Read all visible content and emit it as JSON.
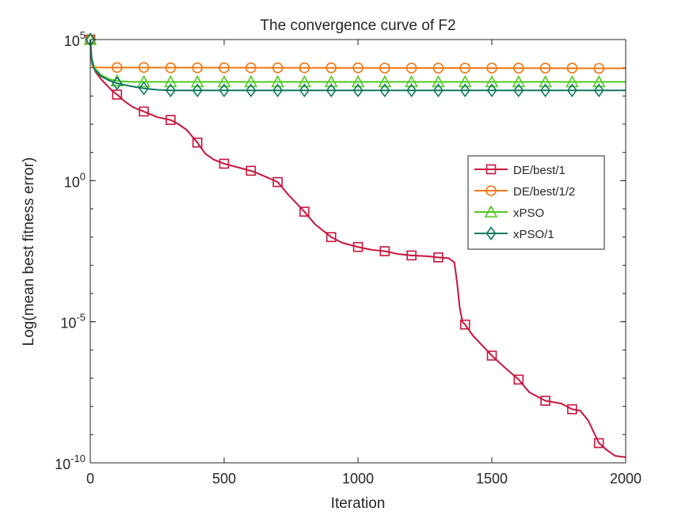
{
  "chart_data": {
    "type": "line",
    "title": "The convergence curve of F2",
    "xlabel": "Iteration",
    "ylabel": "Log(mean best fitness error)",
    "xlim": [
      0,
      2000
    ],
    "ylim_exponent": [
      -10,
      5
    ],
    "y_scale": "log",
    "grid": false,
    "legend_position": "right-middle",
    "x_ticks": [
      {
        "value": 0,
        "label": "0"
      },
      {
        "value": 500,
        "label": "500"
      },
      {
        "value": 1000,
        "label": "1000"
      },
      {
        "value": 1500,
        "label": "1500"
      },
      {
        "value": 2000,
        "label": "2000"
      }
    ],
    "y_ticks": [
      {
        "exponent": 5,
        "base": "10",
        "sup": "5"
      },
      {
        "exponent": 0,
        "base": "10",
        "sup": "0"
      },
      {
        "exponent": -5,
        "base": "10",
        "sup": "-5"
      },
      {
        "exponent": -10,
        "base": "10",
        "sup": "-10"
      }
    ],
    "series": [
      {
        "name": "DE/best/1",
        "color": "#C8143C",
        "marker": "square",
        "points": [
          [
            0,
            5.0
          ],
          [
            5,
            4.35
          ],
          [
            10,
            4.1
          ],
          [
            20,
            3.85
          ],
          [
            40,
            3.6
          ],
          [
            60,
            3.4
          ],
          [
            80,
            3.2
          ],
          [
            100,
            3.05
          ],
          [
            130,
            2.8
          ],
          [
            160,
            2.6
          ],
          [
            200,
            2.45
          ],
          [
            250,
            2.25
          ],
          [
            300,
            2.15
          ],
          [
            330,
            2.0
          ],
          [
            360,
            1.8
          ],
          [
            400,
            1.35
          ],
          [
            430,
            0.95
          ],
          [
            460,
            0.75
          ],
          [
            500,
            0.6
          ],
          [
            540,
            0.5
          ],
          [
            600,
            0.35
          ],
          [
            640,
            0.2
          ],
          [
            700,
            -0.05
          ],
          [
            740,
            -0.5
          ],
          [
            800,
            -1.1
          ],
          [
            840,
            -1.55
          ],
          [
            900,
            -2.0
          ],
          [
            940,
            -2.2
          ],
          [
            1000,
            -2.35
          ],
          [
            1050,
            -2.45
          ],
          [
            1100,
            -2.5
          ],
          [
            1150,
            -2.6
          ],
          [
            1200,
            -2.65
          ],
          [
            1260,
            -2.68
          ],
          [
            1300,
            -2.72
          ],
          [
            1340,
            -2.75
          ],
          [
            1360,
            -2.9
          ],
          [
            1370,
            -3.6
          ],
          [
            1380,
            -4.5
          ],
          [
            1390,
            -5.0
          ],
          [
            1400,
            -5.1
          ],
          [
            1430,
            -5.5
          ],
          [
            1460,
            -5.8
          ],
          [
            1500,
            -6.2
          ],
          [
            1540,
            -6.55
          ],
          [
            1600,
            -7.05
          ],
          [
            1640,
            -7.5
          ],
          [
            1700,
            -7.8
          ],
          [
            1760,
            -7.9
          ],
          [
            1800,
            -8.1
          ],
          [
            1830,
            -8.15
          ],
          [
            1860,
            -8.5
          ],
          [
            1880,
            -8.9
          ],
          [
            1900,
            -9.3
          ],
          [
            1930,
            -9.55
          ],
          [
            1960,
            -9.75
          ],
          [
            2000,
            -9.8
          ]
        ],
        "marker_points": [
          [
            0,
            5.0
          ],
          [
            100,
            3.05
          ],
          [
            200,
            2.45
          ],
          [
            300,
            2.15
          ],
          [
            400,
            1.35
          ],
          [
            500,
            0.6
          ],
          [
            600,
            0.35
          ],
          [
            700,
            -0.05
          ],
          [
            800,
            -1.1
          ],
          [
            900,
            -2.0
          ],
          [
            1000,
            -2.35
          ],
          [
            1100,
            -2.5
          ],
          [
            1200,
            -2.65
          ],
          [
            1300,
            -2.72
          ],
          [
            1400,
            -5.1
          ],
          [
            1500,
            -6.2
          ],
          [
            1600,
            -7.05
          ],
          [
            1700,
            -7.8
          ],
          [
            1800,
            -8.1
          ],
          [
            1900,
            -9.3
          ]
        ]
      },
      {
        "name": "DE/best/1/2",
        "color": "#F07814",
        "marker": "circle",
        "points": [
          [
            0,
            5.0
          ],
          [
            3,
            4.4
          ],
          [
            6,
            4.15
          ],
          [
            10,
            4.02
          ],
          [
            30,
            4.01
          ],
          [
            2000,
            3.98
          ]
        ],
        "marker_points": [
          [
            0,
            5.0
          ],
          [
            100,
            4.01
          ],
          [
            200,
            4.01
          ],
          [
            300,
            4.0
          ],
          [
            400,
            4.0
          ],
          [
            500,
            4.0
          ],
          [
            600,
            4.0
          ],
          [
            700,
            4.0
          ],
          [
            800,
            4.0
          ],
          [
            900,
            4.0
          ],
          [
            1000,
            4.0
          ],
          [
            1100,
            3.99
          ],
          [
            1200,
            3.99
          ],
          [
            1300,
            3.99
          ],
          [
            1400,
            3.99
          ],
          [
            1500,
            3.99
          ],
          [
            1600,
            3.99
          ],
          [
            1700,
            3.99
          ],
          [
            1800,
            3.99
          ],
          [
            1900,
            3.98
          ]
        ]
      },
      {
        "name": "xPSO",
        "color": "#50C81E",
        "marker": "triangle",
        "points": [
          [
            0,
            5.0
          ],
          [
            5,
            4.35
          ],
          [
            15,
            4.0
          ],
          [
            40,
            3.75
          ],
          [
            70,
            3.6
          ],
          [
            100,
            3.53
          ],
          [
            150,
            3.5
          ],
          [
            2000,
            3.5
          ]
        ],
        "marker_points": [
          [
            0,
            5.0
          ],
          [
            100,
            3.53
          ],
          [
            200,
            3.5
          ],
          [
            300,
            3.5
          ],
          [
            400,
            3.5
          ],
          [
            500,
            3.5
          ],
          [
            600,
            3.5
          ],
          [
            700,
            3.5
          ],
          [
            800,
            3.5
          ],
          [
            900,
            3.5
          ],
          [
            1000,
            3.5
          ],
          [
            1100,
            3.5
          ],
          [
            1200,
            3.5
          ],
          [
            1300,
            3.5
          ],
          [
            1400,
            3.5
          ],
          [
            1500,
            3.5
          ],
          [
            1600,
            3.5
          ],
          [
            1700,
            3.5
          ],
          [
            1800,
            3.5
          ],
          [
            1900,
            3.5
          ]
        ]
      },
      {
        "name": "xPSO/1",
        "color": "#0F7864",
        "marker": "diamond",
        "points": [
          [
            0,
            5.0
          ],
          [
            5,
            4.3
          ],
          [
            15,
            3.95
          ],
          [
            40,
            3.7
          ],
          [
            70,
            3.55
          ],
          [
            100,
            3.45
          ],
          [
            150,
            3.35
          ],
          [
            200,
            3.27
          ],
          [
            250,
            3.22
          ],
          [
            300,
            3.2
          ],
          [
            2000,
            3.2
          ]
        ],
        "marker_points": [
          [
            0,
            5.0
          ],
          [
            100,
            3.45
          ],
          [
            200,
            3.27
          ],
          [
            300,
            3.2
          ],
          [
            400,
            3.2
          ],
          [
            500,
            3.2
          ],
          [
            600,
            3.2
          ],
          [
            700,
            3.2
          ],
          [
            800,
            3.2
          ],
          [
            900,
            3.2
          ],
          [
            1000,
            3.2
          ],
          [
            1100,
            3.2
          ],
          [
            1200,
            3.2
          ],
          [
            1300,
            3.2
          ],
          [
            1400,
            3.2
          ],
          [
            1500,
            3.2
          ],
          [
            1600,
            3.2
          ],
          [
            1700,
            3.2
          ],
          [
            1800,
            3.2
          ],
          [
            1900,
            3.2
          ]
        ]
      }
    ]
  }
}
